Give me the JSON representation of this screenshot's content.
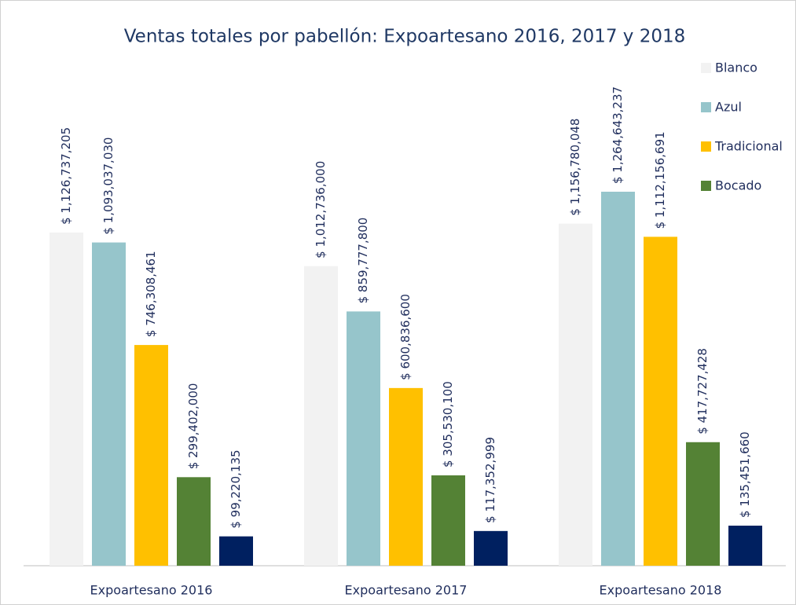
{
  "chart_data": {
    "type": "bar",
    "title": "Ventas totales por pabellón: Expoartesano 2016, 2017 y 2018",
    "categories": [
      "Expoartesano 2016",
      "Expoartesano 2017",
      "Expoartesano 2018"
    ],
    "series": [
      {
        "name": "Blanco",
        "color": "#f2f2f2",
        "values": [
          1126737205,
          1012736000,
          1156780048
        ],
        "value_labels": [
          "$ 1,126,737,205",
          "$ 1,012,736,000",
          "$ 1,156,780,048"
        ]
      },
      {
        "name": "Azul",
        "color": "#96c5cb",
        "values": [
          1093037030,
          859777800,
          1264643237
        ],
        "value_labels": [
          "$ 1,093,037,030",
          "$ 859,777,800",
          "$ 1,264,643,237"
        ]
      },
      {
        "name": "Tradicional",
        "color": "#ffc000",
        "values": [
          746308461,
          600836600,
          1112156691
        ],
        "value_labels": [
          "$ 746,308,461",
          "$ 600,836,600",
          "$ 1,112,156,691"
        ]
      },
      {
        "name": "Bocado",
        "color": "#548235",
        "values": [
          299402000,
          305530100,
          417727428
        ],
        "value_labels": [
          "$ 299,402,000",
          "$ 305,530,100",
          "$ 417,727,428"
        ]
      },
      {
        "color": "#002060",
        "values": [
          99220135,
          117352999,
          135451660
        ],
        "value_labels": [
          "$ 99,220,135",
          "$ 117,352,999",
          "$ 135,451,660"
        ]
      }
    ],
    "legend": "right"
  }
}
